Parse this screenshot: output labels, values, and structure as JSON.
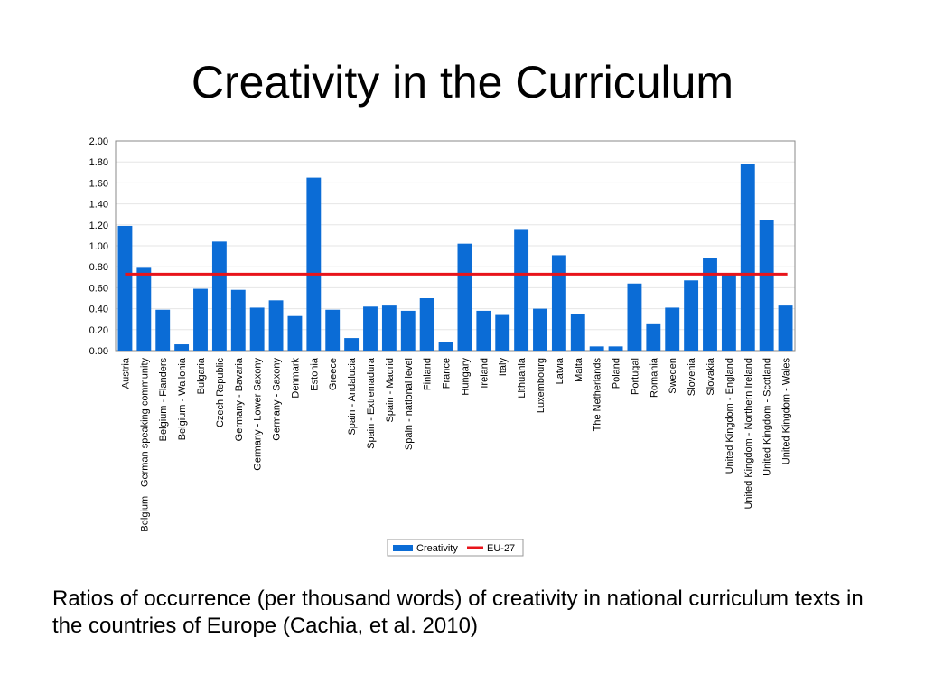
{
  "slide": {
    "title": "Creativity in the Curriculum",
    "caption": "Ratios of occurrence (per thousand words) of creativity in national curriculum texts in the countries of Europe (Cachia, et al. 2010)"
  },
  "colors": {
    "bar": "#0b6cd6",
    "reference_line": "#e8141b",
    "grid": "#e6e6e6",
    "frame": "#888888"
  },
  "chart_data": {
    "type": "bar",
    "ylim": [
      0,
      2
    ],
    "yticks": [
      "0.00",
      "0.20",
      "0.40",
      "0.60",
      "0.80",
      "1.00",
      "1.20",
      "1.40",
      "1.60",
      "1.80",
      "2.00"
    ],
    "grid": true,
    "legend_position": "bottom",
    "categories": [
      "Austria",
      "Belgium - German speaking community",
      "Belgium - Flanders",
      "Belgium - Wallonia",
      "Bulgaria",
      "Czech Republic",
      "Germany - Bavaria",
      "Germany - Lower Saxony",
      "Germany - Saxony",
      "Denmark",
      "Estonia",
      "Greece",
      "Spain - Andalucia",
      "Spain - Extremadura",
      "Spain - Madrid",
      "Spain - national level",
      "Finland",
      "France",
      "Hungary",
      "Ireland",
      "Italy",
      "Lithuania",
      "Luxembourg",
      "Latvia",
      "Malta",
      "The Netherlands",
      "Poland",
      "Portugal",
      "Romania",
      "Sweden",
      "Slovenia",
      "Slovakia",
      "United Kingdom - England",
      "United Kingdom - Northern Ireland",
      "United Kingdom - Scotland",
      "United Kingdom - Wales"
    ],
    "series": [
      {
        "name": "Creativity",
        "type": "bar",
        "values": [
          1.19,
          0.79,
          0.39,
          0.06,
          0.59,
          1.04,
          0.58,
          0.41,
          0.48,
          0.33,
          1.65,
          0.39,
          0.12,
          0.42,
          0.43,
          0.38,
          0.5,
          0.08,
          1.02,
          0.38,
          0.34,
          1.16,
          0.4,
          0.91,
          0.35,
          0.04,
          0.04,
          0.64,
          0.26,
          0.41,
          0.67,
          0.88,
          0.73,
          1.78,
          1.25,
          0.43
        ]
      },
      {
        "name": "EU-27",
        "type": "line",
        "value": 0.73
      }
    ]
  }
}
